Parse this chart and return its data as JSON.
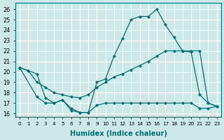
{
  "xlabel": "Humidex (Indice chaleur)",
  "xlim": [
    -0.5,
    23.5
  ],
  "ylim": [
    15.7,
    26.6
  ],
  "yticks": [
    16,
    17,
    18,
    19,
    20,
    21,
    22,
    23,
    24,
    25,
    26
  ],
  "xticks": [
    0,
    1,
    2,
    3,
    4,
    5,
    6,
    7,
    8,
    9,
    10,
    11,
    12,
    13,
    14,
    15,
    16,
    17,
    18,
    19,
    20,
    21,
    22,
    23
  ],
  "bg_color": "#cce8e8",
  "line_color": "#007070",
  "grid_color": "#b8d8d8",
  "line1_x": [
    0,
    1,
    2,
    3,
    4,
    5,
    6,
    7,
    8,
    9,
    10,
    11,
    12,
    13,
    14,
    15,
    16,
    17,
    18,
    19,
    20,
    21,
    22,
    23
  ],
  "line1_y": [
    20.4,
    20.1,
    19.8,
    17.5,
    17.0,
    17.3,
    16.3,
    16.1,
    16.1,
    19.0,
    19.3,
    21.5,
    23.2,
    25.0,
    25.3,
    25.3,
    26.0,
    24.5,
    23.3,
    22.0,
    21.9,
    17.8,
    17.0,
    16.7
  ],
  "line2_x": [
    0,
    2,
    3,
    4,
    5,
    6,
    7,
    8,
    9,
    10,
    11,
    12,
    13,
    14,
    15,
    16,
    17,
    18,
    19,
    20,
    21,
    22,
    23
  ],
  "line2_y": [
    20.4,
    17.6,
    17.0,
    17.0,
    17.3,
    16.5,
    16.1,
    16.1,
    16.8,
    17.0,
    17.0,
    17.0,
    17.0,
    17.0,
    17.0,
    17.0,
    17.0,
    17.0,
    17.0,
    17.0,
    16.5,
    16.5,
    16.7
  ],
  "line3_x": [
    0,
    1,
    2,
    3,
    4,
    5,
    6,
    7,
    8,
    9,
    10,
    11,
    12,
    13,
    14,
    15,
    16,
    17,
    18,
    19,
    20,
    21,
    22,
    23
  ],
  "line3_y": [
    20.4,
    20.1,
    19.0,
    18.5,
    18.0,
    17.8,
    17.6,
    17.5,
    17.8,
    18.5,
    19.0,
    19.5,
    19.8,
    20.2,
    20.6,
    21.0,
    21.5,
    22.0,
    22.0,
    22.0,
    22.0,
    22.0,
    17.0,
    16.7
  ]
}
